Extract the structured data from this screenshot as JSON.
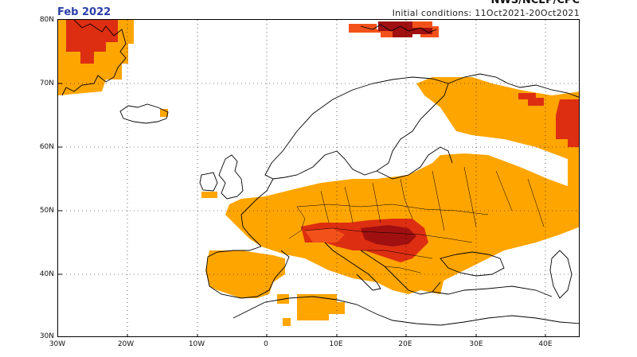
{
  "header": {
    "title": "Feb 2022",
    "organization": "NWS/NCEP/CPC",
    "initial_conditions": "Initial conditions: 11Oct2021-20Oct2021"
  },
  "axes": {
    "lat_labels": [
      "80N",
      "70N",
      "60N",
      "50N",
      "40N",
      "30N"
    ],
    "lon_labels": [
      "30W",
      "20W",
      "10W",
      "0",
      "10E",
      "20E",
      "30E",
      "40E"
    ]
  },
  "colors": {
    "orange": "#ffa500",
    "red_orange": "#f2521a",
    "red": "#dd2e12",
    "dark_red": "#a01010",
    "coast": "#000000"
  }
}
